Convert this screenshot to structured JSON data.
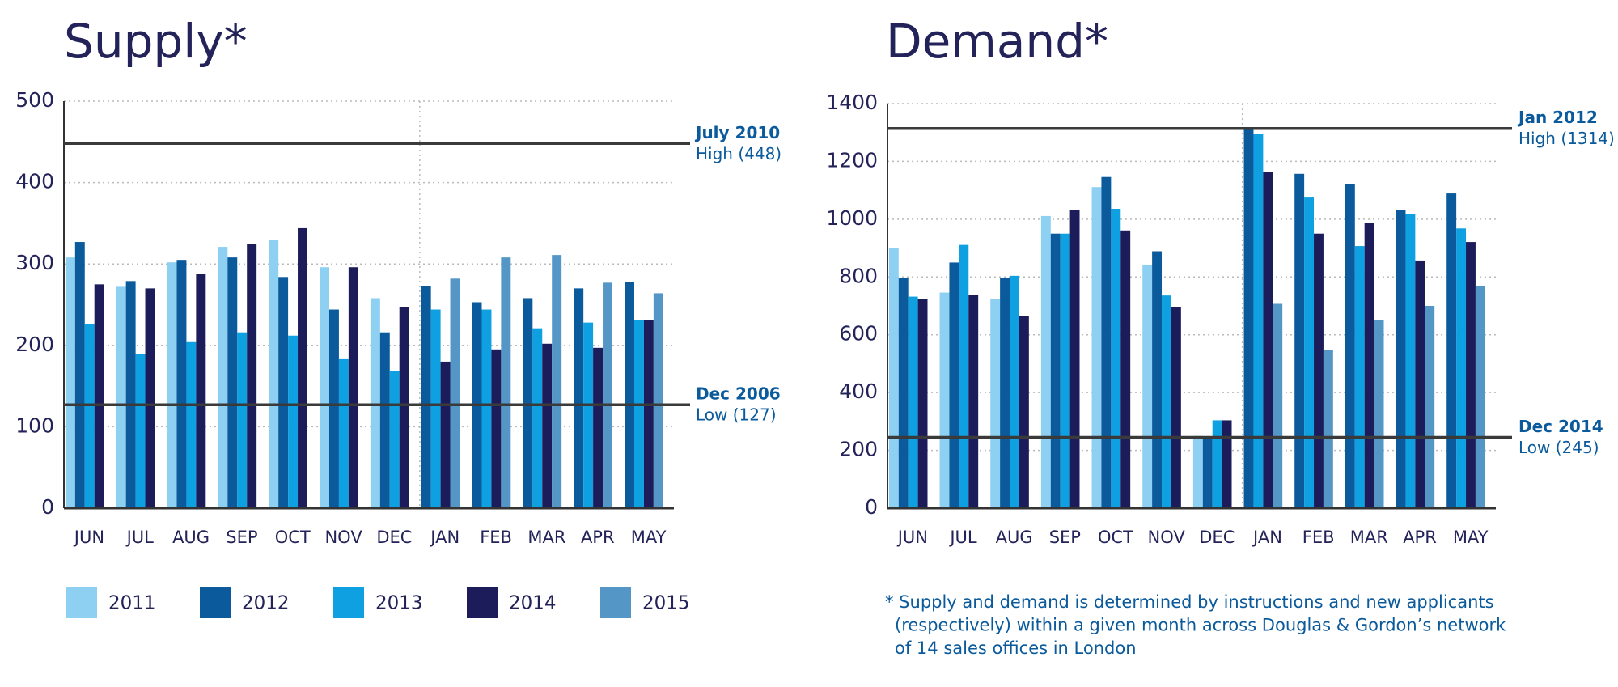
{
  "chart_data": [
    {
      "type": "bar",
      "title": "Supply*",
      "categories": [
        "JUN",
        "JUL",
        "AUG",
        "SEP",
        "OCT",
        "NOV",
        "DEC",
        "JAN",
        "FEB",
        "MAR",
        "APR",
        "MAY"
      ],
      "series": [
        {
          "name": "2011",
          "color": "#8dd0f2",
          "values": [
            308,
            272,
            302,
            321,
            329,
            296,
            258,
            null,
            null,
            null,
            null,
            null
          ]
        },
        {
          "name": "2012",
          "color": "#0a5a9c",
          "values": [
            327,
            279,
            305,
            308,
            284,
            244,
            216,
            273,
            253,
            258,
            270,
            278
          ]
        },
        {
          "name": "2013",
          "color": "#0ea0e0",
          "values": [
            226,
            189,
            204,
            216,
            212,
            183,
            169,
            244,
            244,
            221,
            228,
            231
          ]
        },
        {
          "name": "2014",
          "color": "#1d1c5a",
          "values": [
            275,
            270,
            288,
            325,
            344,
            296,
            247,
            180,
            195,
            202,
            197,
            231
          ]
        },
        {
          "name": "2015",
          "color": "#5497c7",
          "values": [
            null,
            null,
            null,
            null,
            null,
            null,
            null,
            282,
            308,
            311,
            277,
            264
          ]
        }
      ],
      "ylim": [
        0,
        500
      ],
      "yticks": [
        0,
        100,
        200,
        300,
        400,
        500
      ],
      "grid": true,
      "reference_lines": [
        {
          "value": 448,
          "label": "July 2010",
          "sublabel": "High (448)"
        },
        {
          "value": 127,
          "label": "Dec 2006",
          "sublabel": "Low (127)"
        }
      ]
    },
    {
      "type": "bar",
      "title": "Demand*",
      "categories": [
        "JUN",
        "JUL",
        "AUG",
        "SEP",
        "OCT",
        "NOV",
        "DEC",
        "JAN",
        "FEB",
        "MAR",
        "APR",
        "MAY"
      ],
      "series": [
        {
          "color": "#8dd0f2",
          "values": [
            900,
            746,
            725,
            1011,
            1111,
            843,
            250,
            null,
            null,
            null,
            null,
            null
          ]
        },
        {
          "color": "#0a5a9c",
          "values": [
            796,
            850,
            796,
            950,
            1146,
            889,
            245,
            1314,
            1157,
            1121,
            1032,
            1089
          ]
        },
        {
          "color": "#0ea0e0",
          "values": [
            732,
            911,
            804,
            950,
            1036,
            736,
            304,
            1295,
            1075,
            907,
            1018,
            968
          ]
        },
        {
          "color": "#1d1c5a",
          "values": [
            725,
            739,
            664,
            1032,
            961,
            696,
            304,
            1164,
            950,
            986,
            857,
            921
          ]
        },
        {
          "color": "#5497c7",
          "values": [
            null,
            null,
            null,
            null,
            null,
            null,
            null,
            707,
            546,
            650,
            700,
            768
          ]
        }
      ],
      "ylim": [
        0,
        1400
      ],
      "yticks": [
        0,
        200,
        400,
        600,
        800,
        1000,
        1200,
        1400
      ],
      "grid": true,
      "reference_lines": [
        {
          "value": 1314,
          "label": "Jan 2012",
          "sublabel": "High (1314)"
        },
        {
          "value": 245,
          "label": "Dec 2014",
          "sublabel": "Low (245)"
        }
      ],
      "note": [
        "* Supply and demand is determined by instructions and new applicants",
        "(respectively) within a given month across Douglas & Gordon’s network",
        "of 14 sales offices in London"
      ]
    }
  ]
}
